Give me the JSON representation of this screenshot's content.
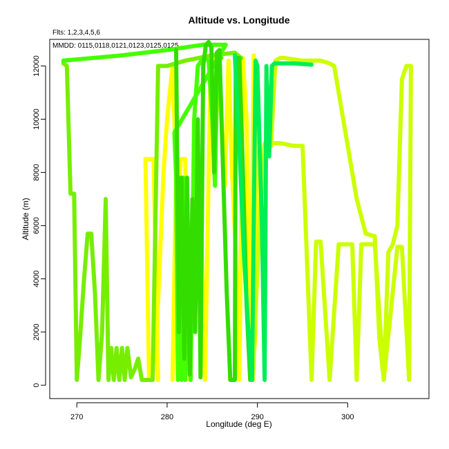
{
  "chart_data": {
    "type": "line",
    "title": "Altitude vs. Longitude",
    "subtitle_1": "Flts: 1,2,3,4,5,6",
    "subtitle_2": "MMDD: 0115,0118,0121,0123,0125,0125",
    "xlabel": "Longitude (deg E)",
    "ylabel": "Altitude (m)",
    "xlim": [
      267,
      309
    ],
    "ylim": [
      -500,
      13000
    ],
    "x_ticks": [
      270,
      280,
      290,
      300
    ],
    "y_ticks": [
      0,
      2000,
      4000,
      6000,
      8000,
      10000,
      12000
    ],
    "grid": false,
    "series": [
      {
        "color": "#ffff00",
        "x": [
          278.0,
          277.6,
          278.5,
          279.0,
          278.8,
          279.6,
          280.0,
          280.6,
          281.0,
          280.6,
          281.5,
          282.0,
          282.5,
          283.0,
          283.6,
          284.2,
          284.8,
          285.2,
          285.6,
          286.0,
          286.4,
          286.8,
          287.2,
          287.6,
          288.0,
          288.4,
          288.8,
          289.2,
          289.6,
          290.0,
          289.8,
          289.4
        ],
        "y": [
          200,
          8500,
          8500,
          200,
          1500,
          8000,
          10000,
          12000,
          8000,
          200,
          8500,
          8500,
          200,
          8300,
          8300,
          200,
          11800,
          12300,
          12200,
          10000,
          7500,
          12200,
          8000,
          5000,
          200,
          12300,
          10000,
          200,
          12400,
          10000,
          2000,
          200
        ]
      },
      {
        "color": "#77ee00",
        "x": [
          268.5,
          268.9,
          269.3,
          269.7,
          270.0,
          270.3,
          270.8,
          271.2,
          271.6,
          272.0,
          272.4,
          272.8,
          273.2,
          273.5,
          273.8,
          274.1,
          274.4,
          274.7,
          275.0,
          275.3,
          275.6,
          276.0,
          276.4,
          276.8,
          277.2,
          277.6,
          278.0,
          278.4,
          279.0,
          280.0,
          282.0,
          285.0,
          287.5,
          288.2
        ],
        "y": [
          12100,
          12000,
          7200,
          7200,
          200,
          1500,
          4000,
          5700,
          5700,
          3500,
          200,
          2000,
          7000,
          200,
          1400,
          200,
          1400,
          200,
          1400,
          200,
          1400,
          300,
          600,
          1000,
          200,
          200,
          200,
          200,
          12000,
          12000,
          12200,
          12400,
          12500,
          12300
        ]
      },
      {
        "color": "#44ff00",
        "x": [
          268.5,
          275.0,
          280.0,
          284.0,
          286.5,
          280.8,
          281.0,
          281.2,
          281.4,
          281.6,
          281.8,
          282.0,
          282.2,
          282.6,
          283.0,
          283.4,
          283.8,
          284.2,
          284.6,
          285.0,
          285.3,
          285.6,
          286.0
        ],
        "y": [
          12200,
          12400,
          12600,
          12800,
          12800,
          9500,
          7800,
          200,
          7800,
          200,
          7800,
          200,
          7800,
          200,
          10000,
          12000,
          12200,
          12300,
          12200,
          10000,
          7500,
          12500,
          12300
        ]
      },
      {
        "color": "#33dd00",
        "x": [
          281.0,
          281.3,
          281.6,
          281.9,
          282.2,
          282.5,
          282.8,
          283.1,
          283.4,
          283.7,
          284.0,
          284.3,
          284.6,
          284.9,
          285.2,
          285.5,
          285.8,
          286.2,
          286.6,
          287.0,
          287.5,
          287.6,
          288.0,
          288.4,
          288.8,
          289.2
        ],
        "y": [
          12600,
          2000,
          7800,
          1000,
          7800,
          400,
          7000,
          2000,
          10000,
          300,
          12000,
          12800,
          12900,
          12700,
          8000,
          12500,
          12600,
          8000,
          3500,
          200,
          200,
          12300,
          12300,
          8000,
          3000,
          200
        ]
      },
      {
        "color": "#ccff00",
        "x": [
          289.5,
          290.2,
          290.8,
          291.5,
          292.0,
          292.5,
          293.0,
          295.0,
          297.0,
          298.0,
          298.5,
          299.0,
          300.0,
          301.0,
          302.0,
          303.0,
          303.5,
          304.0,
          304.5,
          305.0,
          305.5,
          306.0,
          306.5,
          307.0,
          306.8,
          306.6,
          306.0,
          305.5,
          304.0,
          303.0,
          301.5,
          301.0,
          300.5,
          299.0,
          298.0,
          297.0,
          296.5,
          296.0,
          295.0,
          294.0,
          292.5,
          291.0
        ],
        "y": [
          200,
          6000,
          9100,
          9000,
          12200,
          12300,
          12300,
          12200,
          12200,
          12100,
          12000,
          11000,
          9000,
          7000,
          5700,
          5600,
          1800,
          200,
          5000,
          5300,
          6000,
          11500,
          12000,
          12000,
          200,
          1500,
          5200,
          5200,
          200,
          5300,
          5300,
          200,
          5300,
          5300,
          200,
          5400,
          5400,
          200,
          9000,
          9000,
          9100,
          9100
        ]
      },
      {
        "color": "#00ee55",
        "x": [
          287.5,
          288.0,
          288.5,
          289.0,
          289.4,
          289.8,
          290.0,
          290.2,
          290.5,
          290.8,
          291.0,
          291.3,
          291.6,
          291.9,
          292.2,
          292.6,
          293.0,
          294.0,
          296.0
        ],
        "y": [
          12400,
          9000,
          5000,
          2000,
          200,
          12200,
          12000,
          9500,
          6000,
          200,
          12000,
          8600,
          12000,
          12100,
          12100,
          12100,
          12100,
          12100,
          12050
        ]
      }
    ]
  }
}
